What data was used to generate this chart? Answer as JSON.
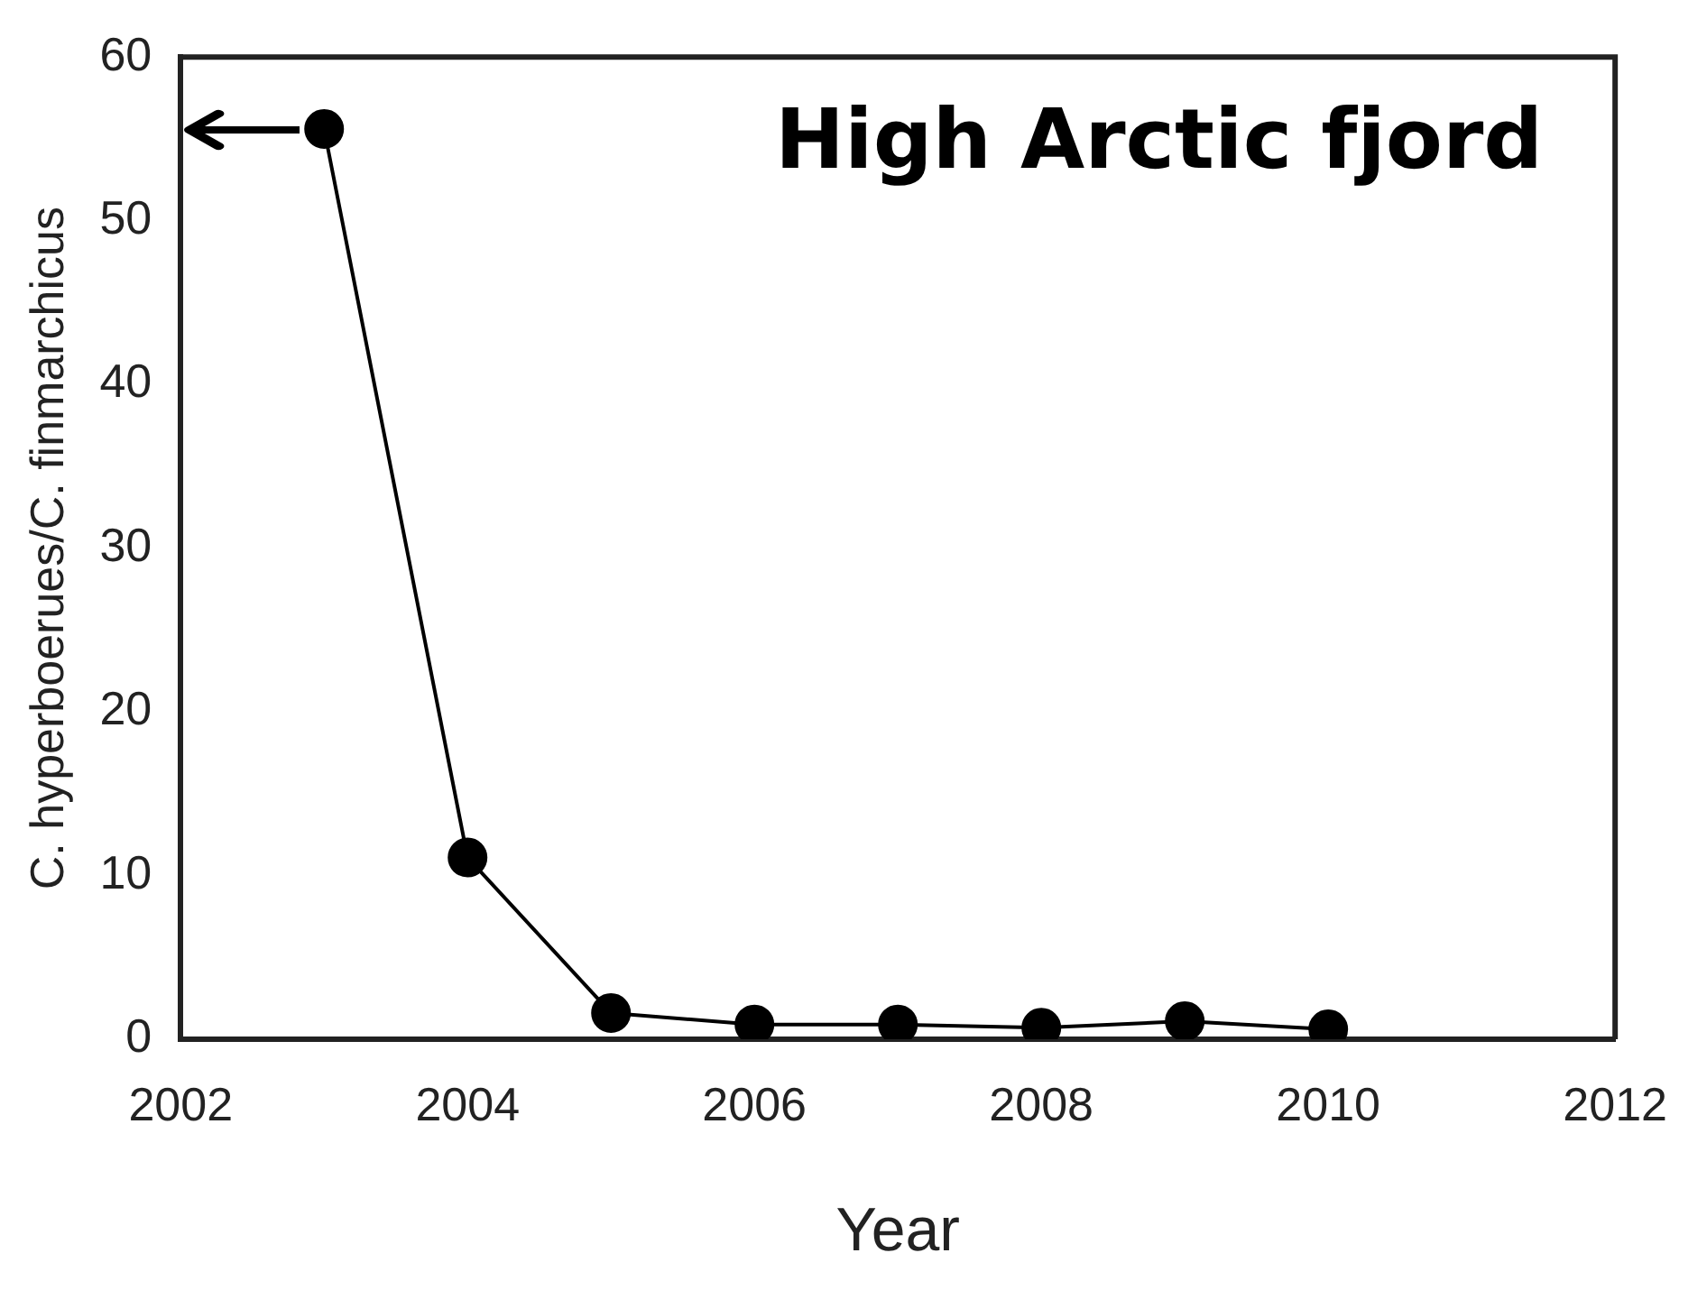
{
  "chart_data": {
    "type": "line",
    "title": "High Arctic fjord",
    "xlabel": "Year",
    "ylabel": "C. hyperboerues/C. finmarchicus",
    "x": [
      2003,
      2004,
      2005,
      2006,
      2007,
      2008,
      2009,
      2010
    ],
    "series": [
      {
        "color": "#000000",
        "values": [
          55.6,
          11.1,
          1.6,
          0.9,
          0.9,
          0.7,
          1.1,
          0.6
        ]
      }
    ],
    "xlim": [
      2002,
      2012
    ],
    "xticks": [
      2002,
      2004,
      2006,
      2008,
      2010,
      2012
    ],
    "ylim": [
      0,
      60
    ],
    "yticks": [
      0,
      10,
      20,
      30,
      40,
      50,
      60
    ],
    "grid": false,
    "legend": false,
    "marker": "circle",
    "line_style": "solid"
  }
}
